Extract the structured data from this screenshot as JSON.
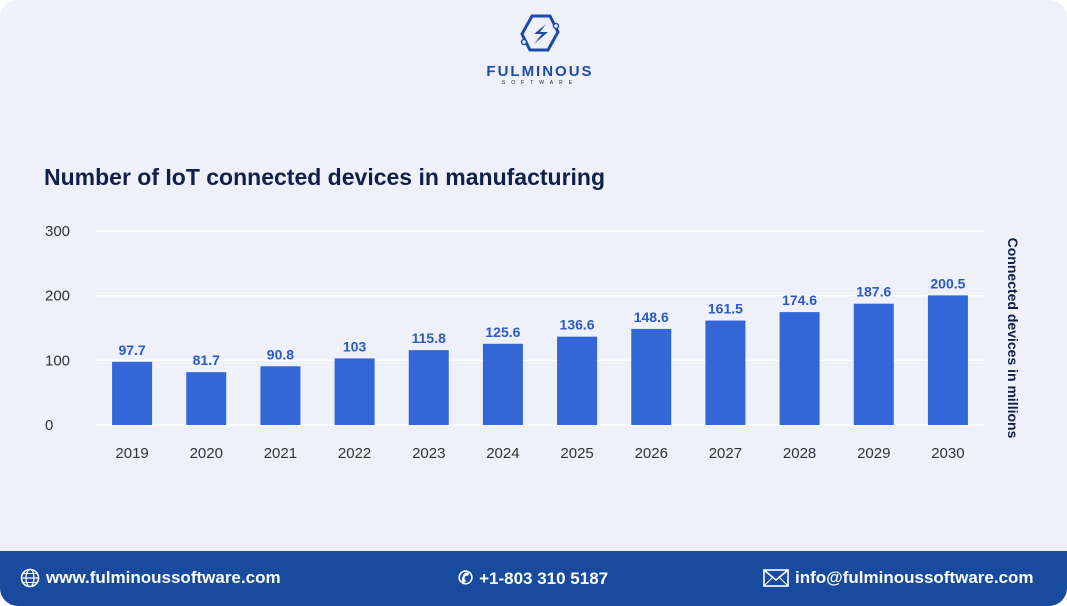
{
  "brand": {
    "name": "FULMINOUS",
    "tagline": "SOFTWARE"
  },
  "chart_data": {
    "type": "bar",
    "title": "Number of IoT connected devices in manufacturing",
    "xlabel": "",
    "ylabel": "Connected devices in millions",
    "categories": [
      "2019",
      "2020",
      "2021",
      "2022",
      "2023",
      "2024",
      "2025",
      "2026",
      "2027",
      "2028",
      "2029",
      "2030"
    ],
    "values": [
      97.7,
      81.7,
      90.8,
      103,
      115.8,
      125.6,
      136.6,
      148.6,
      161.5,
      174.6,
      187.6,
      200.5
    ],
    "data_labels": [
      "97.7",
      "81.7",
      "90.8",
      "103",
      "115.8",
      "125.6",
      "136.6",
      "148.6",
      "161.5",
      "174.6",
      "187.6",
      "200.5"
    ],
    "yticks": [
      "0",
      "100",
      "200",
      "300"
    ],
    "ylim": [
      0,
      300
    ],
    "grid": true,
    "bar_color": "#3366d6"
  },
  "footer": {
    "website": "www.fulminoussoftware.com",
    "phone": "+1-803 310 5187",
    "email": "info@fulminoussoftware.com",
    "color": "#184b9d"
  }
}
